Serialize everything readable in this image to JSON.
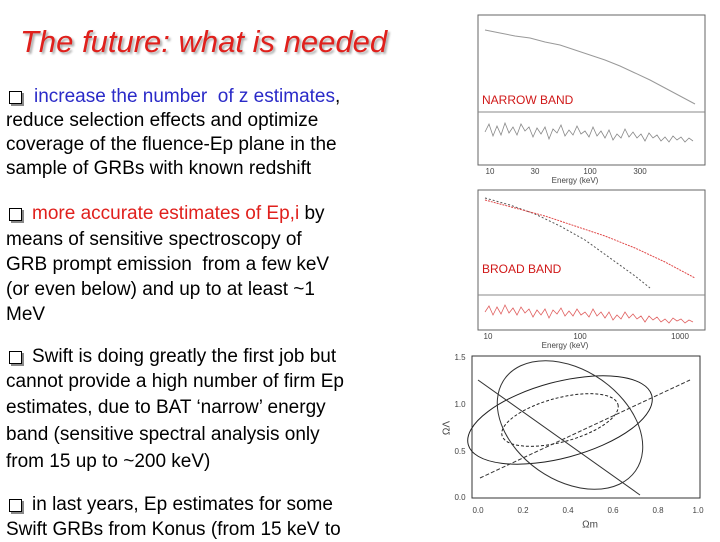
{
  "title": "The future: what is needed",
  "bullets": [
    {
      "lead": "increase the number  of z estimates",
      "lead_color": "#2a2ac8",
      "lines": [
        ",",
        "reduce selection effects and optimize",
        "coverage of the fluence-Ep plane in the",
        "sample of GRBs with known redshift"
      ]
    },
    {
      "lead": "more accurate estimates of Ep,i",
      "lead_color": "#e0201c",
      "lines": [
        " by",
        "means of sensitive spectroscopy of",
        "GRB prompt emission  from a few keV",
        "(or even below) and up to at least ~1",
        "MeV"
      ]
    },
    {
      "lines": [
        "Swift is doing greatly the first job but",
        "cannot provide a high number of firm Ep",
        "estimates, due to BAT ‘narrow’ energy",
        "band (sensitive spectral analysis only",
        "from 15 up to ~200 keV)"
      ]
    },
    {
      "lines": [
        "in last years, Ep estimates for some",
        "Swift GRBs from Konus (from 15 keV to"
      ]
    }
  ],
  "figures": {
    "narrow": {
      "label": "NARROW BAND",
      "xticks": [
        "10",
        "30",
        "100",
        "300"
      ],
      "xlabel": "Energy (keV)"
    },
    "broad": {
      "label": "BROAD BAND",
      "xticks": [
        "10",
        "100",
        "1000"
      ],
      "xlabel": "Energy (keV)"
    },
    "contour": {
      "yticks": [
        "1.5",
        "1.0",
        "0.5",
        "0.0"
      ],
      "xticks": [
        "0.0",
        "0.2",
        "0.4",
        "0.6",
        "0.8",
        "1.0"
      ],
      "xlabel": "Ωm",
      "ylabel": "ΩΛ"
    }
  }
}
